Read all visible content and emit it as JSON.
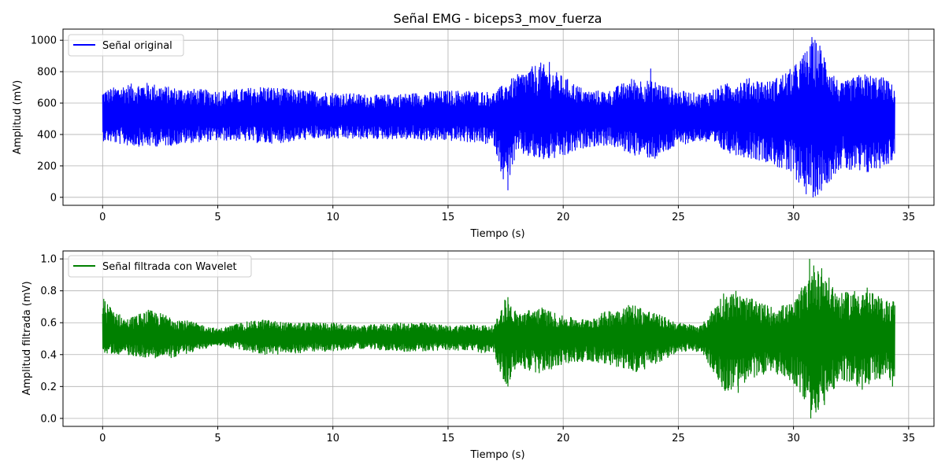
{
  "colors": {
    "original": "#0000ff",
    "filtered": "#008000",
    "grid": "#b0b0b0"
  },
  "chart_data": [
    {
      "type": "line",
      "title": "Señal EMG - biceps3_mov_fuerza",
      "xlabel": "Tiempo (s)",
      "ylabel": "Amplitud (mV)",
      "xlim": [
        -1.72,
        36.1
      ],
      "ylim": [
        -51,
        1071
      ],
      "xticks": [
        0,
        5,
        10,
        15,
        20,
        25,
        30,
        35
      ],
      "xtick_labels": [
        "0",
        "5",
        "10",
        "15",
        "20",
        "25",
        "30",
        "35"
      ],
      "yticks": [
        0,
        200,
        400,
        600,
        800,
        1000
      ],
      "ytick_labels": [
        "0",
        "200",
        "400",
        "600",
        "800",
        "1000"
      ],
      "grid": true,
      "legend_position": "top-left",
      "series": [
        {
          "name": "Señal original",
          "color": "#0000ff",
          "baseline": 515,
          "x_start": 0,
          "x_end": 34.4,
          "envelope": {
            "x": [
              0,
              1,
              2,
              3,
              4,
              5,
              6,
              7,
              8,
              9,
              10,
              11,
              12,
              13,
              14,
              15,
              16,
              17,
              17.5,
              18,
              19,
              20,
              21,
              22,
              23,
              24,
              25,
              26,
              27,
              28,
              29,
              30,
              31,
              32,
              33,
              34,
              34.4
            ],
            "upper": [
              680,
              720,
              730,
              700,
              690,
              680,
              690,
              710,
              690,
              680,
              670,
              660,
              650,
              660,
              670,
              680,
              680,
              670,
              730,
              780,
              860,
              770,
              680,
              680,
              760,
              740,
              680,
              660,
              720,
              760,
              740,
              830,
              1020,
              720,
              790,
              760,
              700
            ],
            "lower": [
              360,
              330,
              320,
              330,
              350,
              360,
              360,
              340,
              350,
              370,
              370,
              370,
              370,
              370,
              360,
              360,
              350,
              330,
              50,
              280,
              230,
              250,
              320,
              330,
              270,
              240,
              330,
              360,
              290,
              250,
              220,
              120,
              0,
              180,
              130,
              200,
              240
            ]
          },
          "spikes": [
            {
              "x": 17.6,
              "y": 45
            },
            {
              "x": 19.4,
              "y": 862
            },
            {
              "x": 23.8,
              "y": 820
            },
            {
              "x": 30.1,
              "y": 810
            },
            {
              "x": 30.5,
              "y": 920
            },
            {
              "x": 30.55,
              "y": 20
            },
            {
              "x": 30.8,
              "y": 1020
            },
            {
              "x": 30.85,
              "y": 0
            }
          ]
        }
      ]
    },
    {
      "type": "line",
      "title": "",
      "xlabel": "Tiempo (s)",
      "ylabel": "Amplitud filtrada (mV)",
      "xlim": [
        -1.72,
        36.1
      ],
      "ylim": [
        -0.05,
        1.05
      ],
      "xticks": [
        0,
        5,
        10,
        15,
        20,
        25,
        30,
        35
      ],
      "xtick_labels": [
        "0",
        "5",
        "10",
        "15",
        "20",
        "25",
        "30",
        "35"
      ],
      "yticks": [
        0.0,
        0.2,
        0.4,
        0.6,
        0.8,
        1.0
      ],
      "ytick_labels": [
        "0.0",
        "0.2",
        "0.4",
        "0.6",
        "0.8",
        "1.0"
      ],
      "grid": true,
      "legend_position": "top-left",
      "series": [
        {
          "name": "Señal filtrada con Wavelet",
          "color": "#008000",
          "baseline": 0.51,
          "x_start": 0,
          "x_end": 34.4,
          "envelope": {
            "x": [
              0,
              1,
              2,
              3,
              4,
              5,
              6,
              7,
              8,
              9,
              10,
              11,
              12,
              13,
              14,
              15,
              16,
              17,
              17.5,
              18,
              19,
              20,
              21,
              22,
              23,
              24,
              25,
              26,
              27,
              28,
              29,
              30,
              31,
              32,
              33,
              34,
              34.4
            ],
            "upper": [
              0.75,
              0.62,
              0.68,
              0.64,
              0.6,
              0.56,
              0.6,
              0.62,
              0.6,
              0.6,
              0.6,
              0.58,
              0.59,
              0.6,
              0.6,
              0.58,
              0.59,
              0.58,
              0.76,
              0.66,
              0.7,
              0.64,
              0.62,
              0.68,
              0.72,
              0.66,
              0.6,
              0.58,
              0.8,
              0.76,
              0.7,
              0.72,
              1.0,
              0.78,
              0.82,
              0.74,
              0.74
            ],
            "lower": [
              0.41,
              0.4,
              0.38,
              0.38,
              0.42,
              0.46,
              0.43,
              0.4,
              0.4,
              0.42,
              0.42,
              0.44,
              0.43,
              0.42,
              0.42,
              0.43,
              0.42,
              0.4,
              0.2,
              0.32,
              0.28,
              0.34,
              0.36,
              0.34,
              0.28,
              0.33,
              0.42,
              0.42,
              0.16,
              0.22,
              0.3,
              0.22,
              0.0,
              0.24,
              0.18,
              0.26,
              0.2
            ]
          },
          "spikes": [
            {
              "x": 0.05,
              "y": 0.75
            },
            {
              "x": 17.6,
              "y": 0.2
            },
            {
              "x": 17.6,
              "y": 0.76
            },
            {
              "x": 27.5,
              "y": 0.8
            },
            {
              "x": 27.6,
              "y": 0.16
            },
            {
              "x": 30.7,
              "y": 1.0
            },
            {
              "x": 30.75,
              "y": 0.0
            },
            {
              "x": 33.2,
              "y": 0.82
            },
            {
              "x": 34.3,
              "y": 0.2
            }
          ]
        }
      ]
    }
  ]
}
